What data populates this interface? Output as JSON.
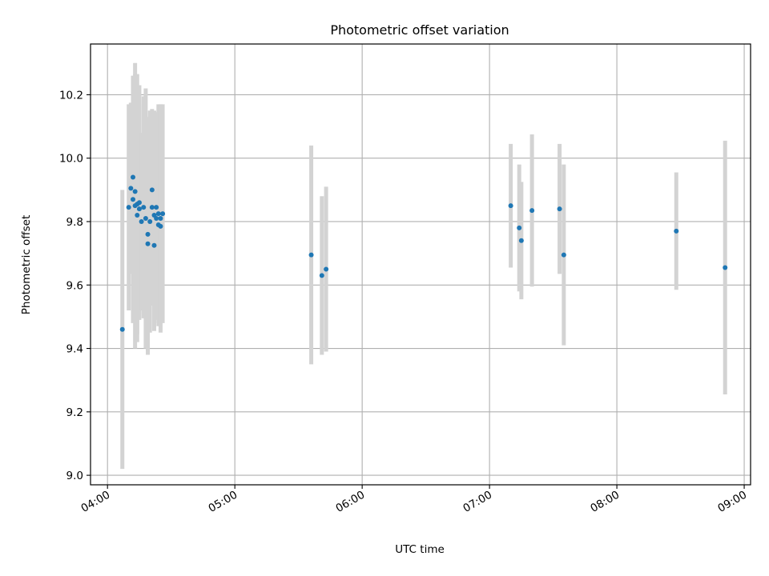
{
  "chart_data": {
    "type": "scatter",
    "title": "Photometric offset variation",
    "xlabel": "UTC time",
    "ylabel": "Photometric offset",
    "x_axis": "time",
    "x_ticks": [
      "04:00",
      "05:00",
      "06:00",
      "07:00",
      "08:00",
      "09:00"
    ],
    "xlim": [
      "03:52",
      "09:03"
    ],
    "y_ticks": [
      "9.0",
      "9.2",
      "9.4",
      "9.6",
      "9.8",
      "10.0",
      "10.2"
    ],
    "ylim": [
      8.97,
      10.36
    ],
    "grid": true,
    "colors": {
      "marker": "#1f77b4",
      "errorbar": "#d3d3d3",
      "grid": "#b0b0b0"
    },
    "series": [
      {
        "points": [
          {
            "x": "04:07",
            "y": 9.46,
            "yerr": 0.44
          },
          {
            "x": "04:10",
            "y": 9.845,
            "yerr": 0.325
          },
          {
            "x": "04:11",
            "y": 9.905,
            "yerr": 0.27
          },
          {
            "x": "04:12",
            "y": 9.94,
            "yerr": 0.3
          },
          {
            "x": "04:12",
            "y": 9.87,
            "yerr": 0.39
          },
          {
            "x": "04:13",
            "y": 9.895,
            "yerr": 0.37
          },
          {
            "x": "04:13",
            "y": 9.85,
            "yerr": 0.45
          },
          {
            "x": "04:14",
            "y": 9.82,
            "yerr": 0.4
          },
          {
            "x": "04:14",
            "y": 9.855,
            "yerr": 0.41
          },
          {
            "x": "04:15",
            "y": 9.84,
            "yerr": 0.33
          },
          {
            "x": "04:15",
            "y": 9.86,
            "yerr": 0.37
          },
          {
            "x": "04:16",
            "y": 9.8,
            "yerr": 0.28
          },
          {
            "x": "04:17",
            "y": 9.845,
            "yerr": 0.35
          },
          {
            "x": "04:18",
            "y": 9.81,
            "yerr": 0.41
          },
          {
            "x": "04:19",
            "y": 9.76,
            "yerr": 0.37
          },
          {
            "x": "04:19",
            "y": 9.73,
            "yerr": 0.35
          },
          {
            "x": "04:20",
            "y": 9.8,
            "yerr": 0.35
          },
          {
            "x": "04:21",
            "y": 9.9,
            "yerr": 0.25
          },
          {
            "x": "04:21",
            "y": 9.845,
            "yerr": 0.31
          },
          {
            "x": "04:22",
            "y": 9.725,
            "yerr": 0.27
          },
          {
            "x": "04:22",
            "y": 9.82,
            "yerr": 0.33
          },
          {
            "x": "04:23",
            "y": 9.81,
            "yerr": 0.32
          },
          {
            "x": "04:23",
            "y": 9.845,
            "yerr": 0.3
          },
          {
            "x": "04:24",
            "y": 9.79,
            "yerr": 0.32
          },
          {
            "x": "04:24",
            "y": 9.825,
            "yerr": 0.345
          },
          {
            "x": "04:25",
            "y": 9.785,
            "yerr": 0.305
          },
          {
            "x": "04:25",
            "y": 9.81,
            "yerr": 0.36
          },
          {
            "x": "04:26",
            "y": 9.825,
            "yerr": 0.345
          },
          {
            "x": "05:36",
            "y": 9.695,
            "yerr": 0.345
          },
          {
            "x": "05:41",
            "y": 9.63,
            "yerr": 0.25
          },
          {
            "x": "05:43",
            "y": 9.65,
            "yerr": 0.26
          },
          {
            "x": "07:10",
            "y": 9.85,
            "yerr": 0.195
          },
          {
            "x": "07:14",
            "y": 9.78,
            "yerr": 0.2
          },
          {
            "x": "07:15",
            "y": 9.74,
            "yerr": 0.185
          },
          {
            "x": "07:20",
            "y": 9.835,
            "yerr": 0.24
          },
          {
            "x": "07:33",
            "y": 9.84,
            "yerr": 0.205
          },
          {
            "x": "07:35",
            "y": 9.695,
            "yerr": 0.285
          },
          {
            "x": "08:28",
            "y": 9.77,
            "yerr": 0.185
          },
          {
            "x": "08:51",
            "y": 9.655,
            "yerr": 0.4
          }
        ]
      }
    ]
  }
}
